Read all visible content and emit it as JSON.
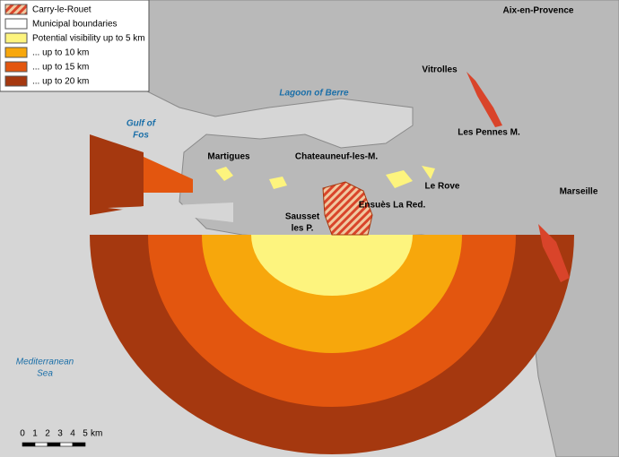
{
  "legend": {
    "items": [
      {
        "label": "Carry-le-Rouet",
        "color": "#d9442a"
      },
      {
        "label": "Municipal boundaries",
        "color": "#ffffff"
      },
      {
        "label": "Potential visibility up to 5 km",
        "color": "#fdf47e"
      },
      {
        "label": "... up to 10 km",
        "color": "#f7a70c"
      },
      {
        "label": "... up to 15 km",
        "color": "#e3560f"
      },
      {
        "label": "... up to 20 km",
        "color": "#a5380f"
      }
    ]
  },
  "places": [
    {
      "lines": [
        "Aix-en-Provence"
      ]
    },
    {
      "lines": [
        "Vitrolles"
      ]
    },
    {
      "lines": [
        "Lagoon of Berre"
      ]
    },
    {
      "lines": [
        "Gulf of",
        "Fos"
      ]
    },
    {
      "lines": [
        "Martigues"
      ]
    },
    {
      "lines": [
        "Chateauneuf-les-M."
      ]
    },
    {
      "lines": [
        "Les Pennes M."
      ]
    },
    {
      "lines": [
        "Le Rove"
      ]
    },
    {
      "lines": [
        "Marseille"
      ]
    },
    {
      "lines": [
        "Sausset",
        "les P."
      ]
    },
    {
      "lines": [
        "Ensuès La Red."
      ]
    },
    {
      "lines": [
        "Mediterranean",
        "Sea"
      ]
    }
  ],
  "scale": {
    "ticks": [
      0,
      1,
      2,
      3,
      4,
      5
    ],
    "unit": "km"
  }
}
